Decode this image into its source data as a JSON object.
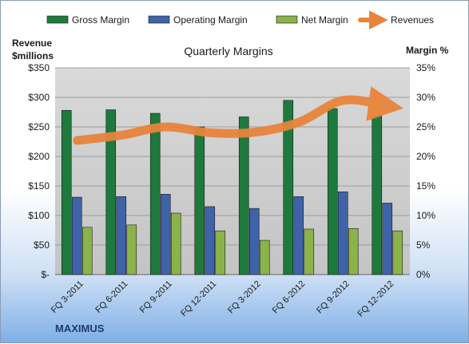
{
  "chart_data": {
    "type": "bar",
    "title": "Quarterly Margins",
    "left_axis_label": [
      "Revenue",
      "$millions"
    ],
    "right_axis_label": "Margin %",
    "footer_label": "MAXIMUS",
    "categories": [
      "FQ 3-2011",
      "FQ 6-2011",
      "FQ 9-2011",
      "FQ 12-2011",
      "FQ 3-2012",
      "FQ 6-2012",
      "FQ 9-2012",
      "FQ 12-2012"
    ],
    "left_ticks": [
      "$-",
      "$50",
      "$100",
      "$150",
      "$200",
      "$250",
      "$300",
      "$350"
    ],
    "right_ticks": [
      "0%",
      "5%",
      "10%",
      "15%",
      "20%",
      "25%",
      "30%",
      "35%"
    ],
    "ylim_left": [
      0,
      350
    ],
    "ylim_right": [
      0,
      35
    ],
    "grid": true,
    "legend_position": "top",
    "series": [
      {
        "name": "Gross Margin",
        "type": "bar",
        "axis": "right",
        "color": "#1e7a3c",
        "values": [
          27.8,
          27.9,
          27.3,
          25.0,
          26.7,
          29.5,
          28.1,
          26.8
        ]
      },
      {
        "name": "Operating Margin",
        "type": "bar",
        "axis": "right",
        "color": "#3f63a8",
        "values": [
          13.1,
          13.2,
          13.6,
          11.5,
          11.2,
          13.2,
          14.0,
          12.1
        ]
      },
      {
        "name": "Net Margin",
        "type": "bar",
        "axis": "right",
        "color": "#8ab34a",
        "values": [
          8.0,
          8.4,
          10.4,
          7.4,
          5.8,
          7.7,
          7.8,
          7.4
        ]
      },
      {
        "name": "Revenues",
        "type": "line",
        "axis": "left",
        "color": "#e8843c",
        "values": [
          227,
          236,
          250,
          240,
          241,
          258,
          295,
          285
        ]
      }
    ]
  }
}
